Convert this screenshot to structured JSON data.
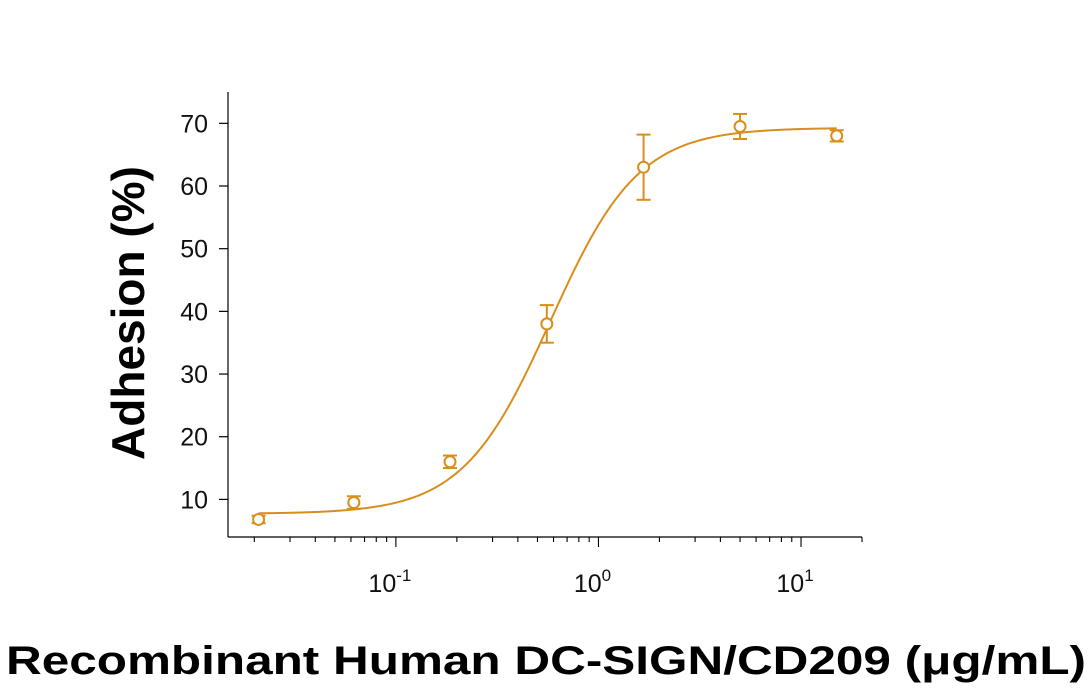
{
  "chart_data": {
    "type": "scatter",
    "title": "",
    "xlabel": "Recombinant Human DC-SIGN/CD209 (μg/mL)",
    "ylabel": "Adhesion (%)",
    "x_scale": "log",
    "xlim": [
      0.015,
      20
    ],
    "ylim": [
      4,
      75
    ],
    "x_ticks": [
      {
        "value": 0.1,
        "base": "10",
        "exp": "-1"
      },
      {
        "value": 1,
        "base": "10",
        "exp": "0"
      },
      {
        "value": 10,
        "base": "10",
        "exp": "1"
      }
    ],
    "y_ticks": [
      10,
      20,
      30,
      40,
      50,
      60,
      70
    ],
    "y_tick_labels": [
      "10",
      "20",
      "30",
      "40",
      "50",
      "60",
      "70"
    ],
    "grid": false,
    "legend": "none",
    "color": "#D98E1C",
    "series": [
      {
        "x": [
          0.021,
          0.062,
          0.185,
          0.556,
          1.67,
          5.0,
          15.0
        ],
        "y": [
          6.8,
          9.5,
          16.0,
          38.0,
          63.0,
          69.5,
          68.0
        ],
        "y_err": [
          0.6,
          1.0,
          1.0,
          3.0,
          5.2,
          2.0,
          0.9
        ]
      }
    ],
    "fit_curve": {
      "model": "4PL",
      "bottom": 7.7,
      "top": 69.3,
      "ec50": 0.58,
      "hill": 2.0
    }
  }
}
